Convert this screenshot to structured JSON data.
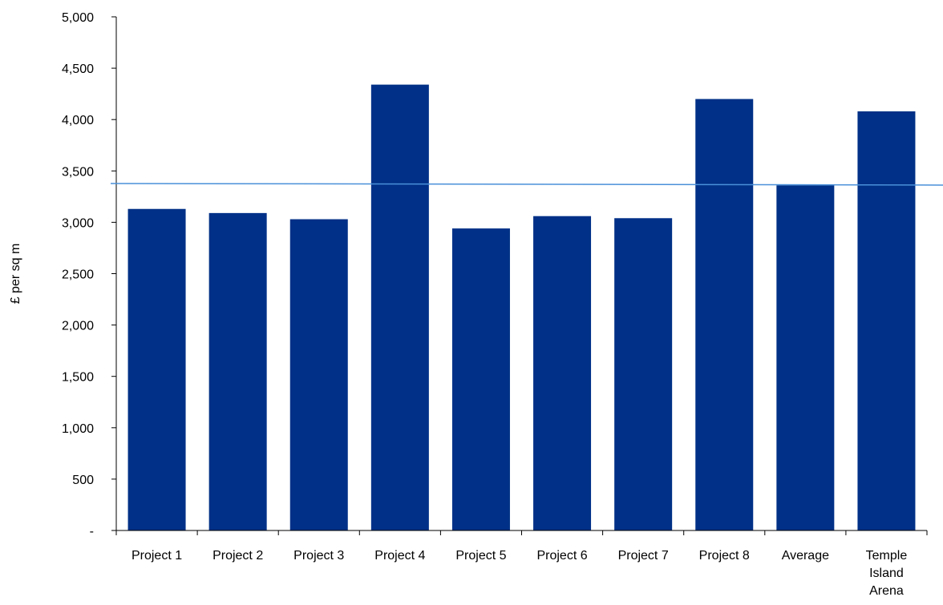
{
  "chart_data": {
    "type": "bar",
    "title": "",
    "xlabel": "",
    "ylabel": "£ per sq m",
    "categories": [
      "Project 1",
      "Project 2",
      "Project 3",
      "Project 4",
      "Project 5",
      "Project 6",
      "Project 7",
      "Project 8",
      "Average",
      "Temple Island Arena"
    ],
    "category_label_lines": [
      [
        "Project 1"
      ],
      [
        "Project 2"
      ],
      [
        "Project 3"
      ],
      [
        "Project 4"
      ],
      [
        "Project 5"
      ],
      [
        "Project 6"
      ],
      [
        "Project 7"
      ],
      [
        "Project 8"
      ],
      [
        "Average"
      ],
      [
        "Temple",
        "Island",
        "Arena"
      ]
    ],
    "values": [
      3130,
      3090,
      3030,
      4340,
      2940,
      3060,
      3040,
      4200,
      3360,
      4080
    ],
    "reference_line": {
      "value": 3370
    },
    "ylim": [
      0,
      5000
    ],
    "yticks": [
      0,
      500,
      1000,
      1500,
      2000,
      2500,
      3000,
      3500,
      4000,
      4500,
      5000
    ],
    "ytick_labels": [
      "-",
      "500",
      "1,000",
      "1,500",
      "2,000",
      "2,500",
      "3,000",
      "3,500",
      "4,000",
      "4,500",
      "5,000"
    ],
    "grid": false,
    "legend": "none",
    "colors": {
      "bar": "#003087",
      "reference_line": "#4a90d9",
      "axis": "#000000"
    }
  }
}
